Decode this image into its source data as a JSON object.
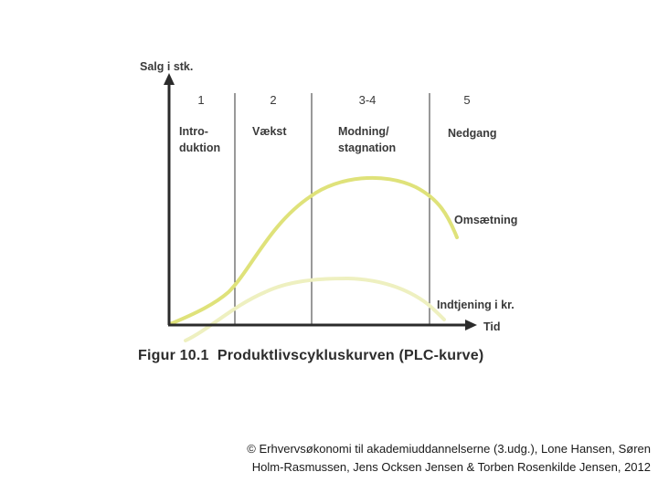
{
  "y_axis_label": "Salg i stk.",
  "x_axis_label": "Tid",
  "phases": [
    {
      "number": "1",
      "name_lines": [
        "Intro-",
        "duktion"
      ]
    },
    {
      "number": "2",
      "name_lines": [
        "Vækst"
      ]
    },
    {
      "number": "3-4",
      "name_lines": [
        "Modning/",
        "stagnation"
      ]
    },
    {
      "number": "5",
      "name_lines": [
        "Nedgang"
      ]
    }
  ],
  "curves": [
    {
      "label": "Omsætning",
      "color": "#dfe27a"
    },
    {
      "label": "Indtjening i kr.",
      "color": "#eef0c0"
    }
  ],
  "caption": "Figur 10.1  Produktlivscykluskurven (PLC-kurve)",
  "copyright_lines": [
    "© Erhvervsøkonomi til akademiuddannelserne (3.udg.), Lone Hansen, Søren",
    "Holm-Rasmussen, Jens Ocksen Jensen & Torben Rosenkilde Jensen, 2012"
  ],
  "colors": {
    "axis": "#2b2b2b",
    "divider": "#333333",
    "revenue": "#dfe27a",
    "profit": "#eef0c0"
  }
}
